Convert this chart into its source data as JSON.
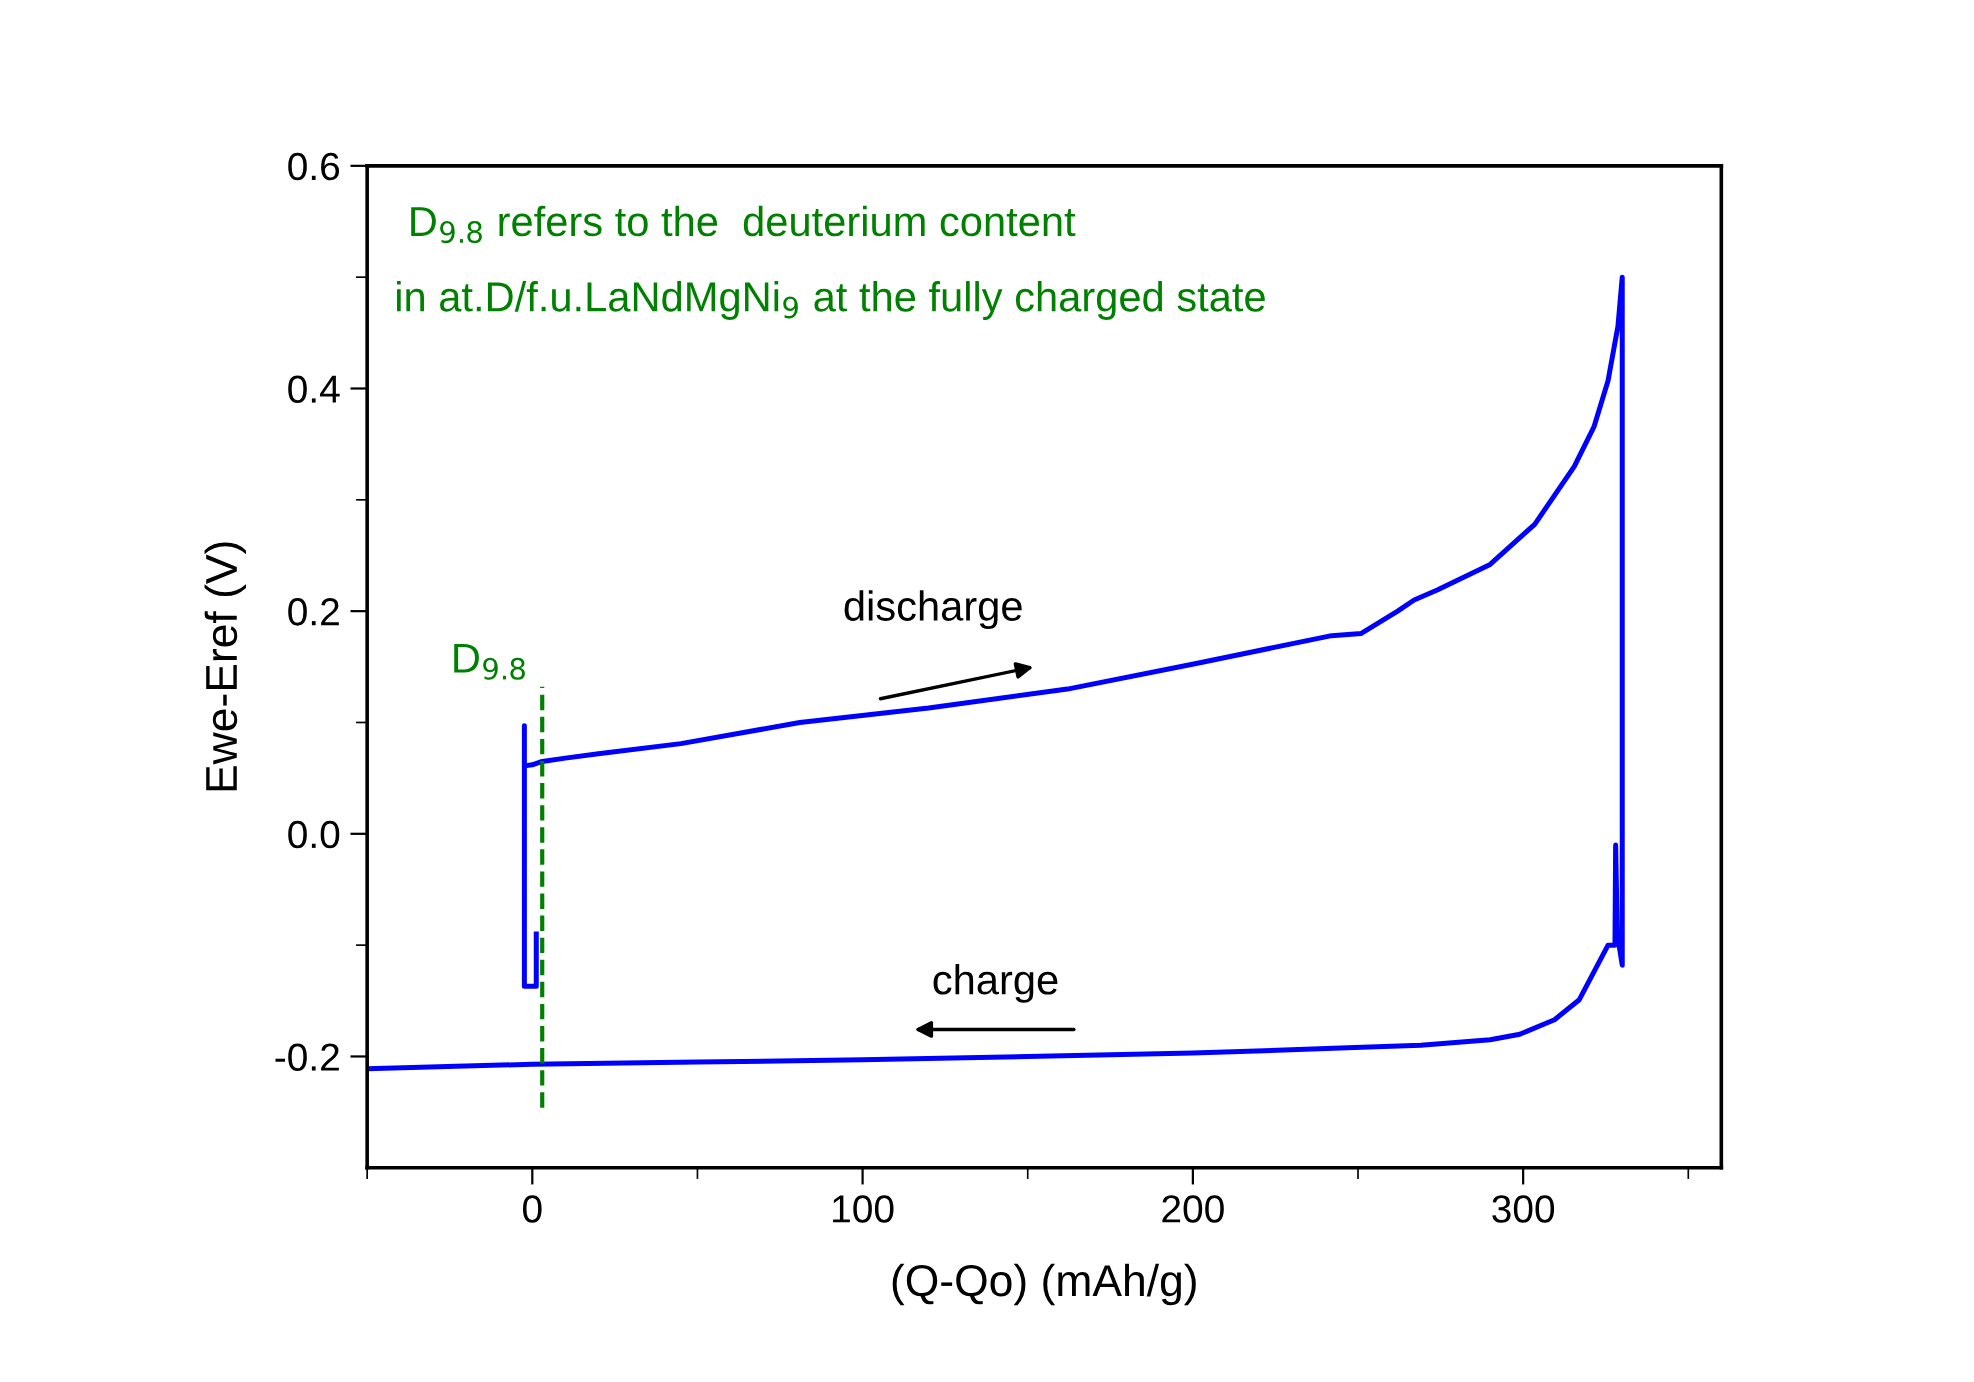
{
  "chart_data": {
    "type": "line",
    "xlabel": "(Q-Qo) (mAh/g)",
    "ylabel": "Ewe-Eref (V)",
    "xlim": [
      -50,
      360
    ],
    "xticks": [
      0,
      100,
      200,
      300
    ],
    "ylim": [
      -0.3,
      0.6
    ],
    "yticks": [
      {
        "value": -0.2,
        "label": "-0.2"
      },
      {
        "value": 0,
        "label": "0.0"
      },
      {
        "value": 0.2,
        "label": "0.2"
      },
      {
        "value": 0.4,
        "label": "0.4"
      },
      {
        "value": 0.6,
        "label": "0.6"
      }
    ],
    "grid": false,
    "marker": "none",
    "line_style": "solid",
    "series": [
      {
        "color": "#0000ff",
        "x": [
          1.2,
          1.2,
          -2.4,
          -2.4,
          -2.4,
          0,
          3,
          10,
          20,
          45,
          81,
          120,
          162,
          201,
          242,
          251,
          262,
          267,
          274,
          290,
          303.5,
          315.5,
          321.5,
          325.7,
          328.7,
          330,
          330,
          328.5,
          328,
          327.8,
          325.7,
          317,
          309.5,
          299,
          290,
          269,
          249,
          200,
          150,
          100,
          50,
          0,
          -50
        ],
        "values": [
          -0.09,
          -0.137,
          -0.137,
          0.097,
          0.061,
          0.062,
          0.065,
          0.068,
          0.072,
          0.081,
          0.1,
          0.113,
          0.13,
          0.153,
          0.178,
          0.18,
          0.2,
          0.21,
          0.219,
          0.242,
          0.278,
          0.33,
          0.366,
          0.407,
          0.456,
          0.5,
          -0.118,
          -0.09,
          -0.01,
          -0.1,
          -0.1,
          -0.149,
          -0.167,
          -0.18,
          -0.185,
          -0.19,
          -0.192,
          -0.197,
          -0.2,
          -0.203,
          -0.205,
          -0.207,
          -0.211
        ]
      }
    ],
    "ref_lines": [
      {
        "axis": "x",
        "value": 3,
        "label": "D$_{9.8}$",
        "color": "#008000",
        "line_style": "dashed"
      }
    ],
    "annotations": [
      "D$_{9.8}$ refers to the  deuterium content",
      "in at.D/f.u.LaNdMgNi$_{9}$ at the fully charged state",
      "discharge",
      "charge"
    ]
  }
}
